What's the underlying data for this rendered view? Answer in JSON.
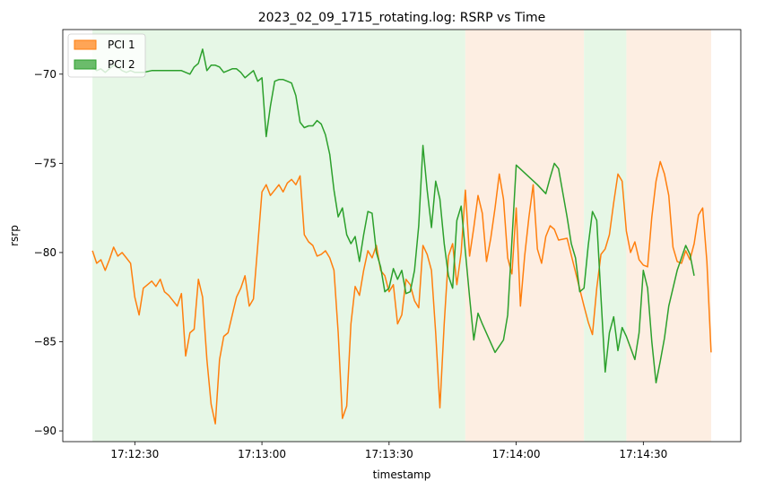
{
  "chart_data": {
    "type": "line",
    "title": "2023_02_09_1715_rotating.log: RSRP vs Time",
    "xlabel": "timestamp",
    "ylabel": "rsrp",
    "xlim": [
      "17:12:13",
      "17:14:53"
    ],
    "ylim": [
      -90.6,
      -67.5
    ],
    "x_ticks": [
      "17:12:30",
      "17:13:00",
      "17:13:30",
      "17:14:00",
      "17:14:30"
    ],
    "y_ticks": [
      -90,
      -85,
      -80,
      -75,
      -70
    ],
    "grid": false,
    "legend": {
      "placement": "top-left",
      "entries": [
        "PCI 1",
        "PCI 2"
      ]
    },
    "colors": {
      "pci1": "#ff7f0e",
      "pci2": "#2ca02c",
      "pci1_span": "#fdeee2",
      "pci2_span": "#e6f7e6"
    },
    "spans": [
      {
        "series": "PCI 2",
        "start": "17:12:20",
        "end": "17:13:48"
      },
      {
        "series": "PCI 1",
        "start": "17:13:48",
        "end": "17:14:16"
      },
      {
        "series": "PCI 2",
        "start": "17:14:16",
        "end": "17:14:26"
      },
      {
        "series": "PCI 1",
        "start": "17:14:26",
        "end": "17:14:46"
      }
    ],
    "series": [
      {
        "name": "PCI 1",
        "color": "#ff7f0e",
        "points": [
          [
            "17:12:20",
            -79.9
          ],
          [
            "17:12:21",
            -80.6
          ],
          [
            "17:12:22",
            -80.4
          ],
          [
            "17:12:23",
            -81.0
          ],
          [
            "17:12:24",
            -80.4
          ],
          [
            "17:12:25",
            -79.7
          ],
          [
            "17:12:26",
            -80.2
          ],
          [
            "17:12:27",
            -80.0
          ],
          [
            "17:12:28",
            -80.3
          ],
          [
            "17:12:29",
            -80.6
          ],
          [
            "17:12:30",
            -82.5
          ],
          [
            "17:12:31",
            -83.5
          ],
          [
            "17:12:32",
            -82.0
          ],
          [
            "17:12:33",
            -81.8
          ],
          [
            "17:12:34",
            -81.6
          ],
          [
            "17:12:35",
            -81.9
          ],
          [
            "17:12:36",
            -81.5
          ],
          [
            "17:12:37",
            -82.2
          ],
          [
            "17:12:38",
            -82.4
          ],
          [
            "17:12:39",
            -82.7
          ],
          [
            "17:12:40",
            -83.0
          ],
          [
            "17:12:41",
            -82.3
          ],
          [
            "17:12:42",
            -85.8
          ],
          [
            "17:12:43",
            -84.5
          ],
          [
            "17:12:44",
            -84.3
          ],
          [
            "17:12:45",
            -81.5
          ],
          [
            "17:12:46",
            -82.5
          ],
          [
            "17:12:47",
            -86.0
          ],
          [
            "17:12:48",
            -88.5
          ],
          [
            "17:12:49",
            -89.6
          ],
          [
            "17:12:50",
            -86.0
          ],
          [
            "17:12:51",
            -84.7
          ],
          [
            "17:12:52",
            -84.5
          ],
          [
            "17:12:53",
            -83.5
          ],
          [
            "17:12:54",
            -82.5
          ],
          [
            "17:12:55",
            -82.0
          ],
          [
            "17:12:56",
            -81.3
          ],
          [
            "17:12:57",
            -83.0
          ],
          [
            "17:12:58",
            -82.6
          ],
          [
            "17:12:59",
            -79.6
          ],
          [
            "17:13:00",
            -76.6
          ],
          [
            "17:13:01",
            -76.2
          ],
          [
            "17:13:02",
            -76.8
          ],
          [
            "17:13:03",
            -76.5
          ],
          [
            "17:13:04",
            -76.2
          ],
          [
            "17:13:05",
            -76.6
          ],
          [
            "17:13:06",
            -76.1
          ],
          [
            "17:13:07",
            -75.9
          ],
          [
            "17:13:08",
            -76.2
          ],
          [
            "17:13:09",
            -75.7
          ],
          [
            "17:13:10",
            -79.0
          ],
          [
            "17:13:11",
            -79.4
          ],
          [
            "17:13:12",
            -79.6
          ],
          [
            "17:13:13",
            -80.2
          ],
          [
            "17:13:14",
            -80.1
          ],
          [
            "17:13:15",
            -79.9
          ],
          [
            "17:13:16",
            -80.3
          ],
          [
            "17:13:17",
            -81.0
          ],
          [
            "17:13:18",
            -84.5
          ],
          [
            "17:13:19",
            -89.3
          ],
          [
            "17:13:20",
            -88.6
          ],
          [
            "17:13:21",
            -84.0
          ],
          [
            "17:13:22",
            -81.9
          ],
          [
            "17:13:23",
            -82.4
          ],
          [
            "17:13:24",
            -81.0
          ],
          [
            "17:13:25",
            -79.9
          ],
          [
            "17:13:26",
            -80.3
          ],
          [
            "17:13:27",
            -79.6
          ],
          [
            "17:13:28",
            -81.0
          ],
          [
            "17:13:29",
            -81.3
          ],
          [
            "17:13:30",
            -82.2
          ],
          [
            "17:13:31",
            -81.8
          ],
          [
            "17:13:32",
            -84.0
          ],
          [
            "17:13:33",
            -83.5
          ],
          [
            "17:13:34",
            -81.5
          ],
          [
            "17:13:35",
            -81.8
          ],
          [
            "17:13:36",
            -82.7
          ],
          [
            "17:13:37",
            -83.1
          ],
          [
            "17:13:38",
            -79.6
          ],
          [
            "17:13:39",
            -80.1
          ],
          [
            "17:13:40",
            -81.0
          ],
          [
            "17:13:41",
            -84.5
          ],
          [
            "17:13:42",
            -88.7
          ],
          [
            "17:13:43",
            -84.0
          ],
          [
            "17:13:44",
            -80.2
          ],
          [
            "17:13:45",
            -79.5
          ],
          [
            "17:13:46",
            -81.8
          ],
          [
            "17:13:47",
            -80.0
          ],
          [
            "17:13:48",
            -76.5
          ],
          [
            "17:13:49",
            -80.2
          ],
          [
            "17:13:50",
            -78.6
          ],
          [
            "17:13:51",
            -76.8
          ],
          [
            "17:13:52",
            -77.8
          ],
          [
            "17:13:53",
            -80.5
          ],
          [
            "17:13:54",
            -79.2
          ],
          [
            "17:13:55",
            -77.5
          ],
          [
            "17:13:56",
            -75.6
          ],
          [
            "17:13:57",
            -77.0
          ],
          [
            "17:13:58",
            -80.3
          ],
          [
            "17:13:59",
            -81.2
          ],
          [
            "17:14:00",
            -77.5
          ],
          [
            "17:14:01",
            -83.0
          ],
          [
            "17:14:02",
            -80.2
          ],
          [
            "17:14:03",
            -78.0
          ],
          [
            "17:14:04",
            -76.2
          ],
          [
            "17:14:05",
            -79.8
          ],
          [
            "17:14:06",
            -80.6
          ],
          [
            "17:14:07",
            -79.1
          ],
          [
            "17:14:08",
            -78.5
          ],
          [
            "17:14:09",
            -78.7
          ],
          [
            "17:14:10",
            -79.3
          ],
          [
            "17:14:12",
            -79.2
          ],
          [
            "17:14:16",
            -83.0
          ],
          [
            "17:14:17",
            -83.9
          ],
          [
            "17:14:18",
            -84.6
          ],
          [
            "17:14:19",
            -82.0
          ],
          [
            "17:14:20",
            -80.1
          ],
          [
            "17:14:21",
            -79.8
          ],
          [
            "17:14:22",
            -79.0
          ],
          [
            "17:14:23",
            -77.2
          ],
          [
            "17:14:24",
            -75.6
          ],
          [
            "17:14:25",
            -76.0
          ],
          [
            "17:14:26",
            -78.8
          ],
          [
            "17:14:27",
            -80.0
          ],
          [
            "17:14:28",
            -79.4
          ],
          [
            "17:14:29",
            -80.4
          ],
          [
            "17:14:30",
            -80.7
          ],
          [
            "17:14:31",
            -80.8
          ],
          [
            "17:14:32",
            -78.0
          ],
          [
            "17:14:33",
            -76.0
          ],
          [
            "17:14:34",
            -74.9
          ],
          [
            "17:14:35",
            -75.6
          ],
          [
            "17:14:36",
            -76.8
          ],
          [
            "17:14:37",
            -79.7
          ],
          [
            "17:14:38",
            -80.5
          ],
          [
            "17:14:39",
            -80.6
          ],
          [
            "17:14:40",
            -79.9
          ],
          [
            "17:14:41",
            -80.4
          ],
          [
            "17:14:42",
            -79.5
          ],
          [
            "17:14:43",
            -77.9
          ],
          [
            "17:14:44",
            -77.5
          ],
          [
            "17:14:45",
            -80.5
          ],
          [
            "17:14:46",
            -85.6
          ]
        ]
      },
      {
        "name": "PCI 2",
        "color": "#2ca02c",
        "points": [
          [
            "17:12:20",
            -69.6
          ],
          [
            "17:12:21",
            -69.8
          ],
          [
            "17:12:22",
            -69.7
          ],
          [
            "17:12:23",
            -69.9
          ],
          [
            "17:12:24",
            -69.7
          ],
          [
            "17:12:25",
            -69.5
          ],
          [
            "17:12:26",
            -69.6
          ],
          [
            "17:12:27",
            -69.8
          ],
          [
            "17:12:28",
            -69.9
          ],
          [
            "17:12:29",
            -69.8
          ],
          [
            "17:12:30",
            -69.9
          ],
          [
            "17:12:32",
            -69.9
          ],
          [
            "17:12:34",
            -69.8
          ],
          [
            "17:12:36",
            -69.8
          ],
          [
            "17:12:38",
            -69.8
          ],
          [
            "17:12:40",
            -69.8
          ],
          [
            "17:12:41",
            -69.8
          ],
          [
            "17:12:42",
            -69.9
          ],
          [
            "17:12:43",
            -70.0
          ],
          [
            "17:12:44",
            -69.6
          ],
          [
            "17:12:45",
            -69.4
          ],
          [
            "17:12:46",
            -68.6
          ],
          [
            "17:12:47",
            -69.8
          ],
          [
            "17:12:48",
            -69.5
          ],
          [
            "17:12:49",
            -69.5
          ],
          [
            "17:12:50",
            -69.6
          ],
          [
            "17:12:51",
            -69.9
          ],
          [
            "17:12:52",
            -69.8
          ],
          [
            "17:12:53",
            -69.7
          ],
          [
            "17:12:54",
            -69.7
          ],
          [
            "17:12:55",
            -69.9
          ],
          [
            "17:12:56",
            -70.2
          ],
          [
            "17:12:57",
            -70.0
          ],
          [
            "17:12:58",
            -69.8
          ],
          [
            "17:12:59",
            -70.4
          ],
          [
            "17:13:00",
            -70.2
          ],
          [
            "17:13:01",
            -73.5
          ],
          [
            "17:13:02",
            -71.8
          ],
          [
            "17:13:03",
            -70.4
          ],
          [
            "17:13:04",
            -70.3
          ],
          [
            "17:13:05",
            -70.3
          ],
          [
            "17:13:06",
            -70.4
          ],
          [
            "17:13:07",
            -70.5
          ],
          [
            "17:13:08",
            -71.2
          ],
          [
            "17:13:09",
            -72.7
          ],
          [
            "17:13:10",
            -73.0
          ],
          [
            "17:13:11",
            -72.9
          ],
          [
            "17:13:12",
            -72.9
          ],
          [
            "17:13:13",
            -72.6
          ],
          [
            "17:13:14",
            -72.8
          ],
          [
            "17:13:15",
            -73.4
          ],
          [
            "17:13:16",
            -74.5
          ],
          [
            "17:13:17",
            -76.5
          ],
          [
            "17:13:18",
            -78.0
          ],
          [
            "17:13:19",
            -77.5
          ],
          [
            "17:13:20",
            -79.0
          ],
          [
            "17:13:21",
            -79.5
          ],
          [
            "17:13:22",
            -79.1
          ],
          [
            "17:13:23",
            -80.5
          ],
          [
            "17:13:24",
            -79.0
          ],
          [
            "17:13:25",
            -77.7
          ],
          [
            "17:13:26",
            -77.8
          ],
          [
            "17:13:27",
            -80.0
          ],
          [
            "17:13:28",
            -80.8
          ],
          [
            "17:13:29",
            -82.2
          ],
          [
            "17:13:30",
            -82.0
          ],
          [
            "17:13:31",
            -80.9
          ],
          [
            "17:13:32",
            -81.5
          ],
          [
            "17:13:33",
            -81.0
          ],
          [
            "17:13:34",
            -82.3
          ],
          [
            "17:13:35",
            -82.2
          ],
          [
            "17:13:36",
            -81.0
          ],
          [
            "17:13:37",
            -78.5
          ],
          [
            "17:13:38",
            -74.0
          ],
          [
            "17:13:39",
            -76.5
          ],
          [
            "17:13:40",
            -78.6
          ],
          [
            "17:13:41",
            -76.0
          ],
          [
            "17:13:42",
            -77.0
          ],
          [
            "17:13:43",
            -79.5
          ],
          [
            "17:13:44",
            -81.3
          ],
          [
            "17:13:45",
            -82.0
          ],
          [
            "17:13:46",
            -78.2
          ],
          [
            "17:13:47",
            -77.4
          ],
          [
            "17:13:49",
            -82.5
          ],
          [
            "17:13:50",
            -84.9
          ],
          [
            "17:13:51",
            -83.4
          ],
          [
            "17:13:52",
            -84.0
          ],
          [
            "17:13:55",
            -85.6
          ],
          [
            "17:13:57",
            -84.9
          ],
          [
            "17:13:58",
            -83.5
          ],
          [
            "17:14:00",
            -75.1
          ],
          [
            "17:14:05",
            -76.2
          ],
          [
            "17:14:07",
            -76.7
          ],
          [
            "17:14:08",
            -75.8
          ],
          [
            "17:14:09",
            -75.0
          ],
          [
            "17:14:10",
            -75.3
          ],
          [
            "17:14:12",
            -78.0
          ],
          [
            "17:14:13",
            -79.5
          ],
          [
            "17:14:14",
            -80.3
          ],
          [
            "17:14:15",
            -82.2
          ],
          [
            "17:14:16",
            -82.0
          ],
          [
            "17:14:17",
            -79.6
          ],
          [
            "17:14:18",
            -77.7
          ],
          [
            "17:14:19",
            -78.2
          ],
          [
            "17:14:20",
            -82.5
          ],
          [
            "17:14:21",
            -86.7
          ],
          [
            "17:14:22",
            -84.5
          ],
          [
            "17:14:23",
            -83.6
          ],
          [
            "17:14:24",
            -85.5
          ],
          [
            "17:14:25",
            -84.2
          ],
          [
            "17:14:26",
            -84.7
          ],
          [
            "17:14:28",
            -86.0
          ],
          [
            "17:14:29",
            -84.5
          ],
          [
            "17:14:30",
            -81.0
          ],
          [
            "17:14:31",
            -82.0
          ],
          [
            "17:14:32",
            -85.0
          ],
          [
            "17:14:33",
            -87.3
          ],
          [
            "17:14:34",
            -86.1
          ],
          [
            "17:14:35",
            -84.8
          ],
          [
            "17:14:36",
            -83.0
          ],
          [
            "17:14:38",
            -81.0
          ],
          [
            "17:14:40",
            -79.6
          ],
          [
            "17:14:41",
            -80.1
          ],
          [
            "17:14:42",
            -81.3
          ]
        ]
      }
    ]
  }
}
